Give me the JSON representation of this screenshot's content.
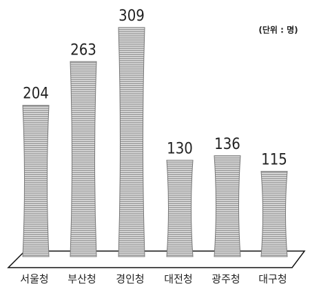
{
  "chart_data": {
    "type": "bar",
    "unit_label": "(단위 : 명)",
    "categories": [
      "서울청",
      "부산청",
      "경인청",
      "대전청",
      "광주청",
      "대구청"
    ],
    "values": [
      204,
      263,
      309,
      130,
      136,
      115
    ],
    "color": "#777777"
  }
}
